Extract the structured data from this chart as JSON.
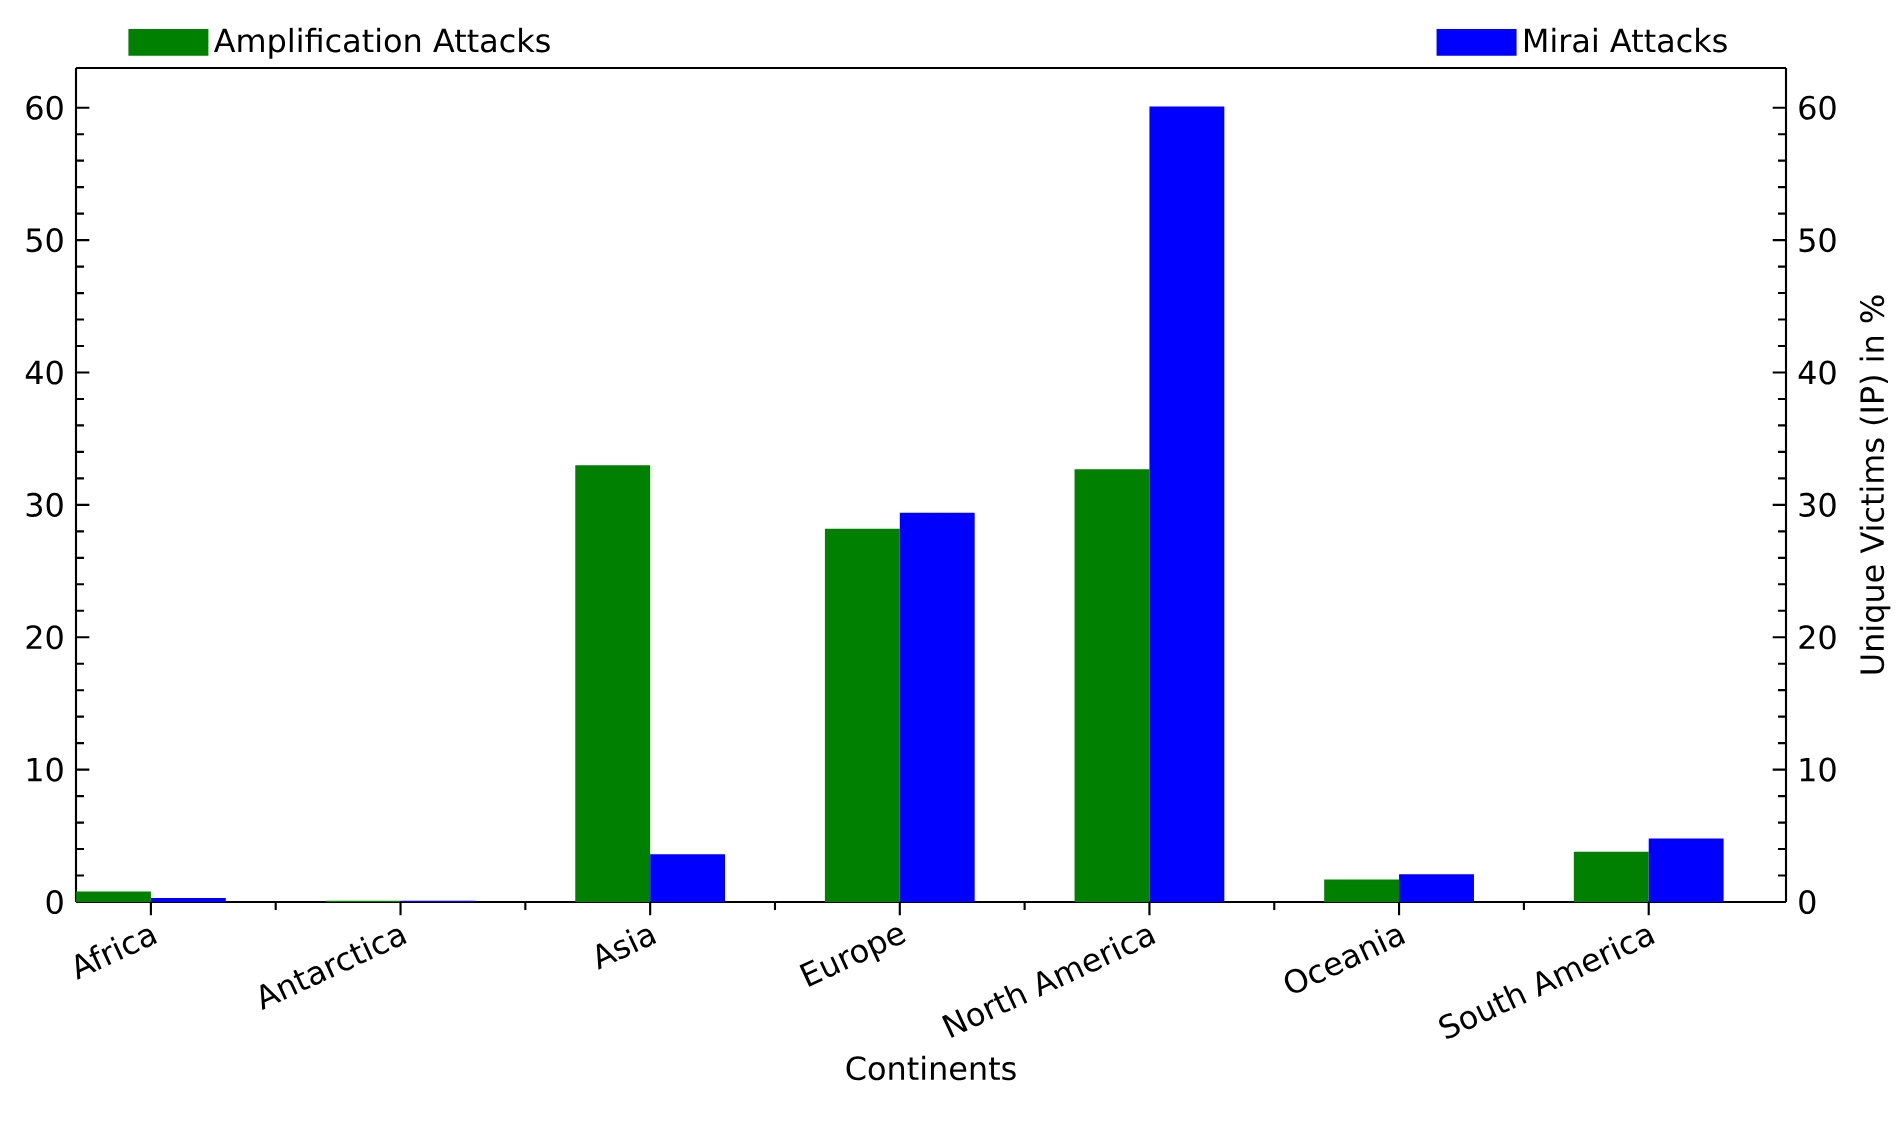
{
  "chart_data": {
    "type": "bar",
    "xlabel": "Continents",
    "ylabel": "Unique Victims (IP) in %",
    "categories": [
      "Africa",
      "Antarctica",
      "Asia",
      "Europe",
      "North America",
      "Oceania",
      "South America"
    ],
    "series": [
      {
        "name": "Amplification Attacks",
        "color": "#008000",
        "values": [
          0.8,
          0.1,
          33,
          28.2,
          32.7,
          1.7,
          3.8
        ]
      },
      {
        "name": "Mirai Attacks",
        "color": "#0000ff",
        "values": [
          0.3,
          0.1,
          3.6,
          29.4,
          60.1,
          2.1,
          4.8
        ]
      }
    ],
    "ylim": [
      0,
      63
    ],
    "yticks": [
      0,
      10,
      20,
      30,
      40,
      50,
      60
    ],
    "y2lim": [
      0,
      63
    ],
    "y2ticks": [
      0,
      10,
      20,
      30,
      40,
      50,
      60
    ],
    "legend": "top",
    "grid": false
  }
}
